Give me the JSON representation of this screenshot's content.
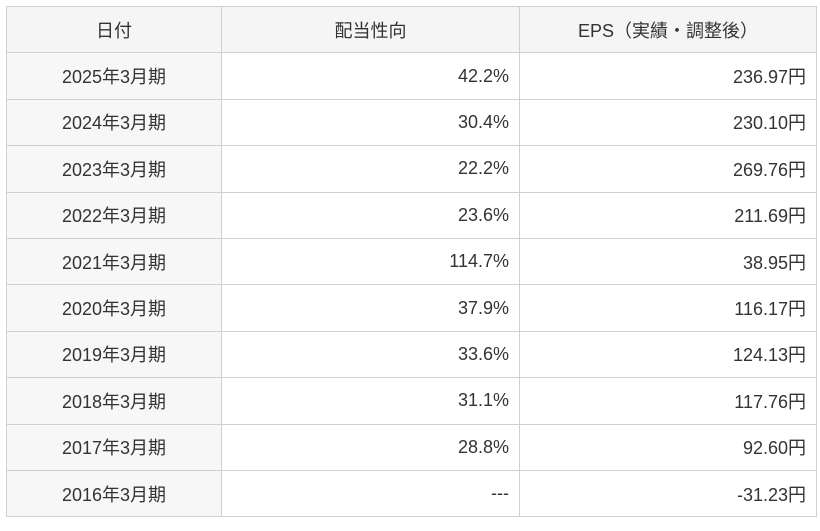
{
  "table": {
    "header": [
      "日付",
      "配当性向",
      "EPS（実績・調整後）"
    ],
    "rows": [
      [
        "2025年3月期",
        "42.2%",
        "236.97円"
      ],
      [
        "2024年3月期",
        "30.4%",
        "230.10円"
      ],
      [
        "2023年3月期",
        "22.2%",
        "269.76円"
      ],
      [
        "2022年3月期",
        "23.6%",
        "211.69円"
      ],
      [
        "2021年3月期",
        "114.7%",
        "38.95円"
      ],
      [
        "2020年3月期",
        "37.9%",
        "116.17円"
      ],
      [
        "2019年3月期",
        "33.6%",
        "124.13円"
      ],
      [
        "2018年3月期",
        "31.1%",
        "117.76円"
      ],
      [
        "2017年3月期",
        "28.8%",
        "92.60円"
      ],
      [
        "2016年3月期",
        "---",
        "-31.23円"
      ]
    ]
  }
}
